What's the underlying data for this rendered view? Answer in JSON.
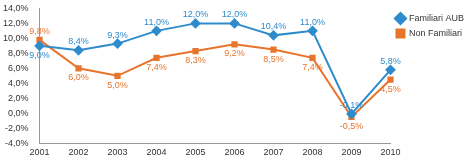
{
  "chart_data": {
    "type": "line",
    "categories": [
      "2001",
      "2002",
      "2003",
      "2004",
      "2005",
      "2006",
      "2007",
      "2008",
      "2009",
      "2010"
    ],
    "series": [
      {
        "name": "Familiari AUB",
        "color": "#2e8bcc",
        "marker": "diamond",
        "values": [
          9.0,
          8.4,
          9.3,
          11.0,
          12.0,
          12.0,
          10.4,
          11.0,
          -0.1,
          5.8
        ],
        "value_labels": [
          "9,0%",
          "8,4%",
          "9,3%",
          "11,0%",
          "12,0%",
          "12,0%",
          "10,4%",
          "11,0%",
          "-0,1%",
          "5,8%"
        ]
      },
      {
        "name": "Non Familiari",
        "color": "#e8742c",
        "marker": "square",
        "values": [
          9.8,
          6.0,
          5.0,
          7.4,
          8.3,
          9.2,
          8.5,
          7.4,
          -0.5,
          4.5
        ],
        "value_labels": [
          "9,8%",
          "6,0%",
          "5,0%",
          "7,4%",
          "8,3%",
          "9,2%",
          "8,5%",
          "7,4%",
          "-0,5%",
          "4,5%"
        ]
      }
    ],
    "ylim": [
      -4,
      14
    ],
    "yticks": [
      {
        "value": -4,
        "label": "-4,0%"
      },
      {
        "value": -2,
        "label": "-2,0%"
      },
      {
        "value": 0,
        "label": "0,0%"
      },
      {
        "value": 2,
        "label": "2,0%"
      },
      {
        "value": 4,
        "label": "4,0%"
      },
      {
        "value": 6,
        "label": "6,0%"
      },
      {
        "value": 8,
        "label": "8,0%"
      },
      {
        "value": 10,
        "label": "10,0%"
      },
      {
        "value": 12,
        "label": "12,0%"
      },
      {
        "value": 14,
        "label": "14,0%"
      }
    ],
    "grid": false,
    "legend": "right",
    "data_labels": true
  }
}
